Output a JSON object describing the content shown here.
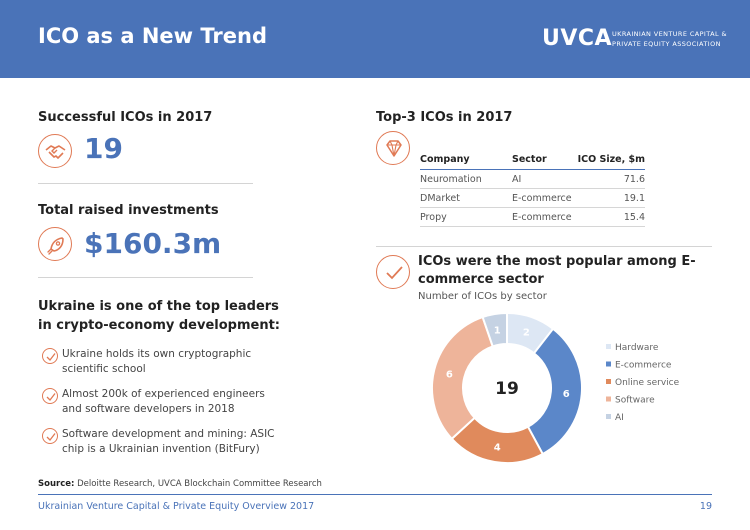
{
  "header": {
    "title": "ICO as a New Trend",
    "logo": "UVCA",
    "logo_sub_line1": "UKRAINIAN VENTURE CAPITAL &",
    "logo_sub_line2": "PRIVATE EQUITY ASSOCIATION"
  },
  "left": {
    "successful_title": "Successful ICOs  in 2017",
    "successful_value": "19",
    "raised_title": "Total raised investments",
    "raised_value": "$160.3m",
    "ukraine_title": "Ukraine is one of the top leaders in crypto-economy development:",
    "bullets": [
      "Ukraine holds its own cryptographic scientific school",
      "Almost 200k of experienced engineers and software developers in 2018",
      "Software development and mining: ASIC chip is a Ukrainian invention (BitFury)"
    ],
    "icons": [
      "handshake-icon",
      "rocket-icon",
      "checkmark-icon"
    ]
  },
  "top3": {
    "title": "Top-3 ICOs in 2017",
    "icon": "diamond-icon",
    "columns": [
      "Company",
      "Sector",
      "ICO Size,  $m"
    ],
    "rows": [
      [
        "Neuromation",
        "AI",
        "71.6"
      ],
      [
        "DMarket",
        "E-commerce",
        "19.1"
      ],
      [
        "Propy",
        "E-commerce",
        "15.4"
      ]
    ]
  },
  "chart_section": {
    "title": "ICOs were the most popular among E-commerce sector",
    "subtitle": "Number of ICOs by sector",
    "center_label": "19"
  },
  "chart_data": {
    "type": "pie",
    "subtype": "donut",
    "title": "Number of ICOs by sector",
    "categories": [
      "Hardware",
      "E-commerce",
      "Online service",
      "Software",
      "AI"
    ],
    "values": [
      2,
      6,
      4,
      6,
      1
    ],
    "colors": [
      "#dde7f4",
      "#5b87c9",
      "#e08a5c",
      "#eeb49a",
      "#c5d2e3"
    ],
    "total": 19,
    "legend_position": "right"
  },
  "source": {
    "label": "Source:",
    "text": "Deloitte Research, UVCA Blockchain Committee Research"
  },
  "footer": {
    "text": "Ukrainian Venture Capital & Private Equity Overview 2017",
    "page": "19"
  },
  "colors": {
    "brand_blue": "#4a73b8",
    "accent_orange": "#e07a55"
  }
}
